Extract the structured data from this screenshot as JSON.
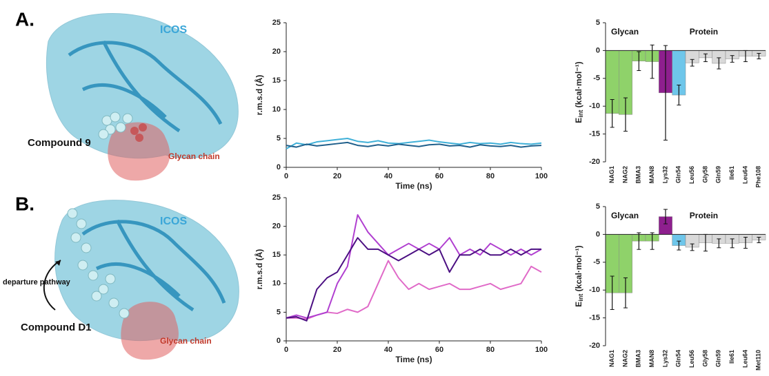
{
  "panels": [
    {
      "label": "A.",
      "protein": "ICOS",
      "compound": "Compound 9",
      "glycan": "Glycan chain"
    },
    {
      "label": "B.",
      "protein": "ICOS",
      "compound": "Compound D1",
      "glycan": "Glycan chain",
      "pathway": "departure pathway"
    }
  ],
  "chart_data": [
    {
      "type": "line",
      "ylabel": "r.m.s.d (Å)",
      "xlabel": "Time (ns)",
      "xlim": [
        0,
        100
      ],
      "ylim": [
        0,
        25
      ],
      "xticks": [
        0,
        20,
        40,
        60,
        80,
        100
      ],
      "yticks": [
        0,
        5,
        10,
        15,
        20,
        25
      ],
      "x": [
        0,
        4,
        8,
        12,
        16,
        20,
        24,
        28,
        32,
        36,
        40,
        44,
        48,
        52,
        56,
        60,
        64,
        68,
        72,
        76,
        80,
        84,
        88,
        92,
        96,
        100
      ],
      "series": [
        {
          "color": "#3fb0d8",
          "values": [
            3.2,
            4.2,
            3.9,
            4.4,
            4.6,
            4.8,
            5.0,
            4.5,
            4.3,
            4.6,
            4.2,
            4.1,
            4.3,
            4.5,
            4.7,
            4.4,
            4.2,
            4.0,
            4.3,
            4.1,
            4.2,
            4.0,
            4.3,
            4.1,
            4.0,
            4.2
          ]
        },
        {
          "color": "#1f5f8b",
          "values": [
            3.8,
            3.5,
            4.0,
            3.7,
            3.9,
            4.1,
            4.3,
            3.8,
            3.6,
            3.9,
            3.7,
            4.0,
            3.8,
            3.6,
            3.9,
            4.0,
            3.7,
            3.8,
            3.5,
            3.9,
            3.7,
            3.6,
            3.8,
            3.5,
            3.7,
            3.8
          ]
        }
      ]
    },
    {
      "type": "bar",
      "ylabel": "E",
      "ylabel_sub": "int",
      "ylabel_unit": " (kcal·mol⁻¹)",
      "groups": [
        "Glycan",
        "Protein"
      ],
      "ylim": [
        -20,
        5
      ],
      "yticks": [
        -20,
        -15,
        -10,
        -5,
        0,
        5
      ],
      "categories": [
        "NAG1",
        "NAG2",
        "BMA3",
        "MAN8",
        "Lys32",
        "Gln54",
        "Leu56",
        "Gly58",
        "Gln59",
        "Ile61",
        "Leu64",
        "Phe108"
      ],
      "values": [
        -11.3,
        -11.5,
        -1.9,
        -2.0,
        -7.6,
        -8.0,
        -2.2,
        -1.3,
        -2.3,
        -1.5,
        -1.0,
        -1.0
      ],
      "errors": [
        2.5,
        3.0,
        1.7,
        3.0,
        8.5,
        1.8,
        0.6,
        0.7,
        1.0,
        0.6,
        1.0,
        0.5
      ],
      "colors": [
        "#8fd26a",
        "#8fd26a",
        "#8fd26a",
        "#8fd26a",
        "#8e1f8e",
        "#6ec6ea",
        "#d9d9d9",
        "#d9d9d9",
        "#d9d9d9",
        "#d9d9d9",
        "#d9d9d9",
        "#d9d9d9"
      ]
    },
    {
      "type": "line",
      "ylabel": "r.m.s.d (Å)",
      "xlabel": "Time (ns)",
      "xlim": [
        0,
        100
      ],
      "ylim": [
        0,
        25
      ],
      "xticks": [
        0,
        20,
        40,
        60,
        80,
        100
      ],
      "yticks": [
        0,
        5,
        10,
        15,
        20,
        25
      ],
      "x": [
        0,
        4,
        8,
        12,
        16,
        20,
        24,
        28,
        32,
        36,
        40,
        44,
        48,
        52,
        56,
        60,
        64,
        68,
        72,
        76,
        80,
        84,
        88,
        92,
        96,
        100
      ],
      "series": [
        {
          "color": "#e06ac8",
          "values": [
            4,
            4,
            3.8,
            4.5,
            5,
            4.8,
            5.5,
            5,
            6,
            10,
            14,
            11,
            9,
            10,
            9,
            9.5,
            10,
            9,
            9,
            9.5,
            10,
            9,
            9.5,
            10,
            13,
            12
          ]
        },
        {
          "color": "#b03fd0",
          "values": [
            4,
            4.5,
            4,
            4.5,
            5,
            10,
            13,
            22,
            19,
            17,
            15,
            16,
            17,
            16,
            17,
            16,
            18,
            15,
            16,
            15,
            17,
            16,
            15,
            16,
            15,
            16
          ]
        },
        {
          "color": "#4b0f82",
          "values": [
            4,
            4.2,
            3.5,
            9,
            11,
            12,
            15,
            18,
            16,
            16,
            15,
            14,
            15,
            16,
            15,
            16,
            12,
            15,
            15,
            16,
            15,
            15,
            16,
            15,
            16,
            16
          ]
        }
      ]
    },
    {
      "type": "bar",
      "ylabel": "E",
      "ylabel_sub": "int",
      "ylabel_unit": " (kcal·mol⁻¹)",
      "groups": [
        "Glycan",
        "Protein"
      ],
      "ylim": [
        -20,
        5
      ],
      "yticks": [
        -20,
        -15,
        -10,
        -5,
        0,
        5
      ],
      "categories": [
        "NAG1",
        "NAG2",
        "BMA3",
        "MAN8",
        "Lys32",
        "Gln54",
        "Leu56",
        "Gly58",
        "Gln59",
        "Ile61",
        "Leu64",
        "Met110"
      ],
      "values": [
        -10.5,
        -10.5,
        -1.2,
        -1.2,
        3.2,
        -2.0,
        -2.3,
        -1.5,
        -1.6,
        -1.6,
        -1.5,
        -1.0
      ],
      "errors": [
        3.0,
        2.7,
        1.5,
        1.5,
        1.3,
        0.8,
        0.6,
        1.5,
        0.8,
        0.8,
        1.0,
        0.5
      ],
      "colors": [
        "#8fd26a",
        "#8fd26a",
        "#8fd26a",
        "#8fd26a",
        "#8e1f8e",
        "#6ec6ea",
        "#d9d9d9",
        "#d9d9d9",
        "#d9d9d9",
        "#d9d9d9",
        "#d9d9d9",
        "#d9d9d9"
      ]
    }
  ]
}
